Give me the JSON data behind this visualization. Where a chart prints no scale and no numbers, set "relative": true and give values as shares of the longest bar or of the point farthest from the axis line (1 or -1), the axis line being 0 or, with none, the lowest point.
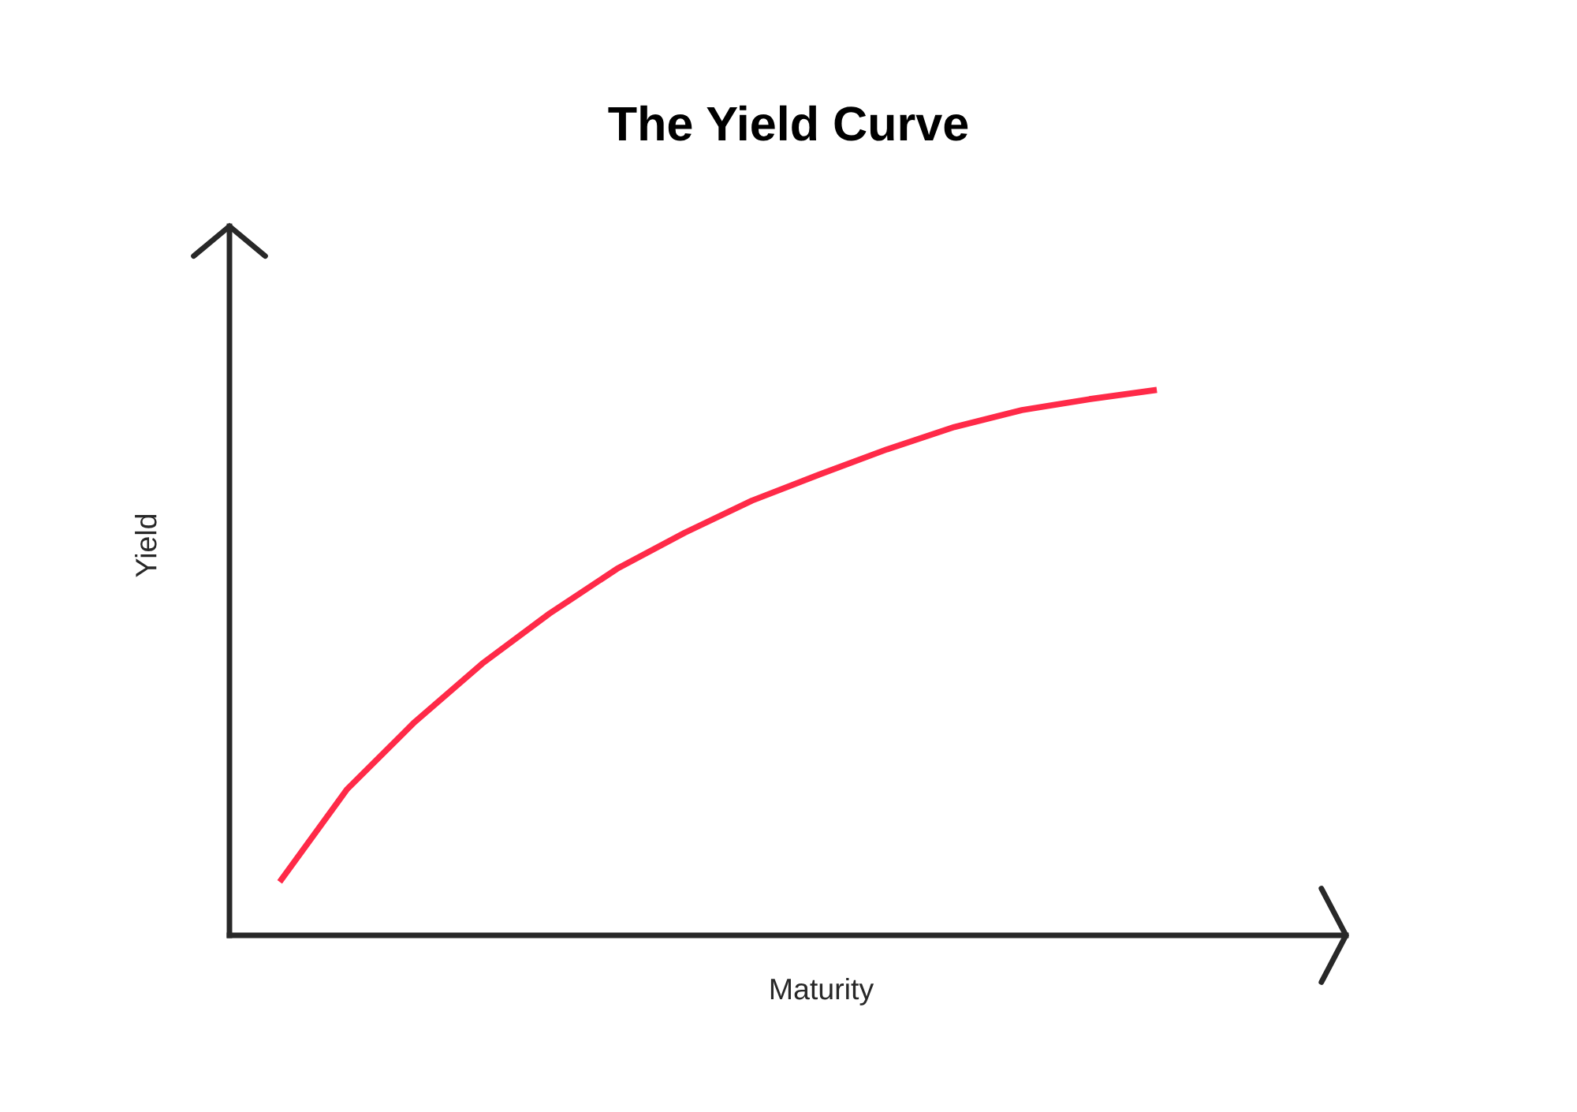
{
  "chart_data": {
    "type": "line",
    "title": "The Yield Curve",
    "xlabel": "Maturity",
    "ylabel": "Yield",
    "relative": true,
    "categories": [
      null,
      null,
      null,
      null,
      null,
      null,
      null,
      null,
      null,
      null,
      null,
      null,
      null,
      null
    ],
    "series": [
      {
        "color": "#ff2a48",
        "values": [
          0.098,
          0.268,
          0.391,
          0.498,
          0.59,
          0.672,
          0.738,
          0.797,
          0.845,
          0.891,
          0.932,
          0.963,
          0.983,
          1.0
        ]
      }
    ],
    "marker": "none",
    "line_style": "solid"
  }
}
